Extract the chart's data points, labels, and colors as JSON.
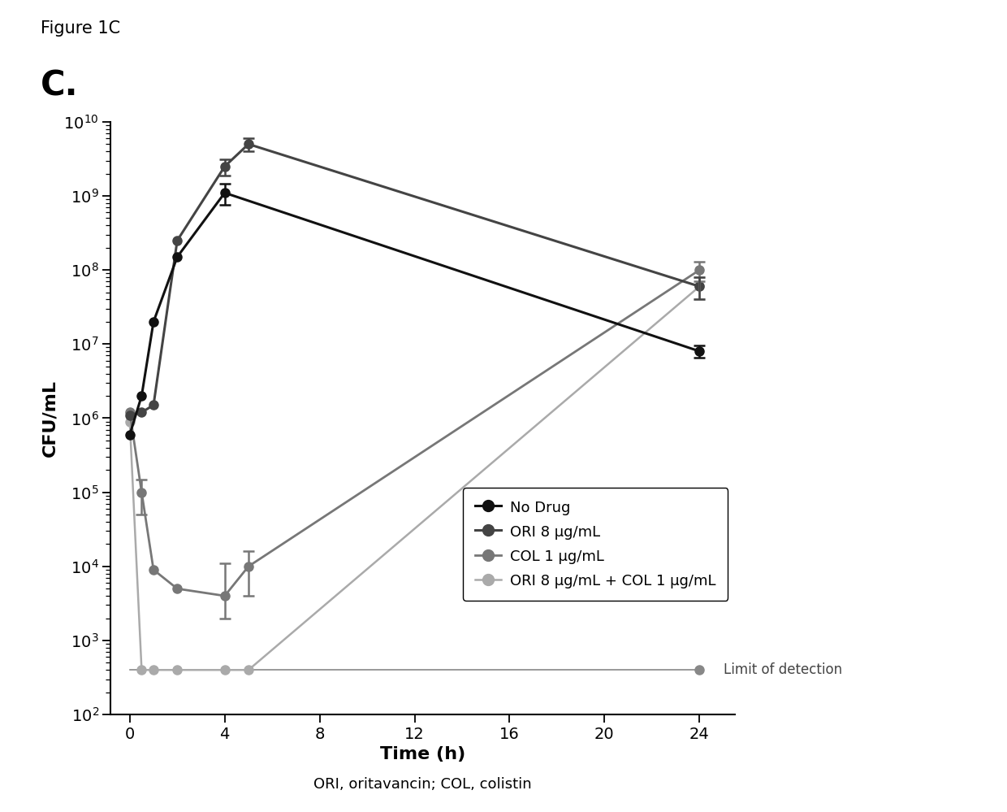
{
  "figure_label": "Figure 1C",
  "panel_label": "C.",
  "subtitle": "ORI, oritavancin; COL, colistin",
  "xlabel": "Time (h)",
  "ylabel": "CFU/mL",
  "xlim": [
    -0.8,
    25.5
  ],
  "ylim_low": 100,
  "ylim_high": 10000000000.0,
  "xticks": [
    0,
    4,
    8,
    12,
    16,
    20,
    24
  ],
  "limit_of_detection": 400,
  "limit_label": "Limit of detection",
  "series": [
    {
      "label": "No Drug",
      "color": "#111111",
      "x": [
        0,
        0.5,
        1,
        2,
        4,
        24
      ],
      "y": [
        600000.0,
        2000000.0,
        20000000.0,
        150000000.0,
        1100000000.0,
        8000000.0
      ],
      "yerr_low": [
        0,
        0,
        0,
        0,
        350000000.0,
        1500000.0
      ],
      "yerr_high": [
        0,
        0,
        0,
        0,
        350000000.0,
        1500000.0
      ],
      "marker": "o",
      "markersize": 8,
      "linewidth": 2.2,
      "zorder": 4
    },
    {
      "label": "ORI 8 μg/mL",
      "color": "#444444",
      "x": [
        0,
        0.5,
        1,
        2,
        4,
        5,
        24
      ],
      "y": [
        1100000.0,
        1200000.0,
        1500000.0,
        250000000.0,
        2500000000.0,
        5000000000.0,
        60000000.0
      ],
      "yerr_low": [
        0,
        0,
        0,
        0,
        600000000.0,
        1000000000.0,
        20000000.0
      ],
      "yerr_high": [
        0,
        0,
        0,
        0,
        600000000.0,
        1000000000.0,
        20000000.0
      ],
      "marker": "o",
      "markersize": 8,
      "linewidth": 2.2,
      "zorder": 3
    },
    {
      "label": "COL 1 μg/mL",
      "color": "#777777",
      "x": [
        0,
        0.5,
        1,
        2,
        4,
        5,
        24
      ],
      "y": [
        1200000.0,
        100000.0,
        9000.0,
        5000.0,
        4000.0,
        10000.0,
        100000000.0
      ],
      "yerr_low": [
        0,
        50000.0,
        0,
        0,
        2000.0,
        6000.0,
        30000000.0
      ],
      "yerr_high": [
        0,
        50000.0,
        0,
        0,
        7000.0,
        6000.0,
        30000000.0
      ],
      "marker": "o",
      "markersize": 8,
      "linewidth": 2.0,
      "zorder": 2
    },
    {
      "label": "ORI 8 μg/mL + COL 1 μg/mL",
      "color": "#aaaaaa",
      "x": [
        0,
        0.5,
        1,
        2,
        4,
        5,
        24
      ],
      "y": [
        900000.0,
        400,
        400,
        400,
        400,
        400,
        60000000.0
      ],
      "yerr_low": [
        0,
        0,
        0,
        0,
        0,
        0,
        20000000.0
      ],
      "yerr_high": [
        0,
        0,
        0,
        0,
        0,
        0,
        20000000.0
      ],
      "marker": "o",
      "markersize": 8,
      "linewidth": 1.8,
      "zorder": 1
    }
  ],
  "background_color": "#ffffff",
  "figure_facecolor": "#ffffff"
}
